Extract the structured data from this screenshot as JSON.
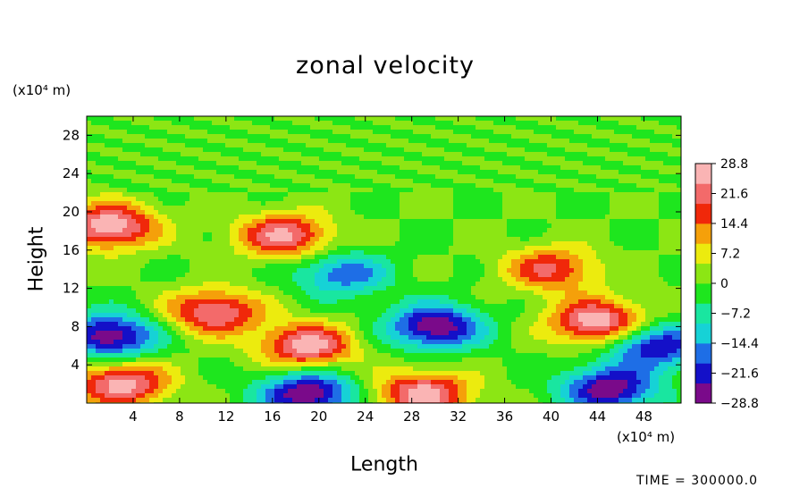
{
  "chart_data": {
    "type": "heatmap",
    "title": "zonal velocity",
    "xlabel": "Length",
    "ylabel": "Height",
    "x_unit": "(x10⁴ m)",
    "y_unit": "(x10⁴ m)",
    "xlim": [
      0,
      51.2
    ],
    "ylim": [
      0,
      30
    ],
    "x_ticks": [
      4,
      8,
      12,
      16,
      20,
      24,
      28,
      32,
      36,
      40,
      44,
      48
    ],
    "y_ticks": [
      4,
      8,
      12,
      16,
      20,
      24,
      28
    ],
    "colorbar": {
      "ticks": [
        28.8,
        21.6,
        14.4,
        7.2,
        0,
        -7.2,
        -14.4,
        -21.6,
        -28.8
      ],
      "tick_labels": [
        "28.8",
        "21.6",
        "14.4",
        "7.2",
        "0",
        "−7.2",
        "−14.4",
        "−21.6",
        "−28.8"
      ],
      "range": [
        -28.8,
        28.8
      ],
      "colors": [
        "#7a0a8a",
        "#1410c8",
        "#1e6ee6",
        "#16d2d6",
        "#19e6a0",
        "#1ee61e",
        "#8ce614",
        "#eceb0e",
        "#f5a00a",
        "#f0280a",
        "#f36a6a",
        "#fab4b4"
      ]
    },
    "features": [
      {
        "x": 2,
        "y": 18.5,
        "value": 29,
        "kind": "max"
      },
      {
        "x": 11,
        "y": 9.5,
        "value": 25,
        "kind": "max"
      },
      {
        "x": 19,
        "y": 6,
        "value": 27,
        "kind": "max"
      },
      {
        "x": 17,
        "y": 17.5,
        "value": 25,
        "kind": "max"
      },
      {
        "x": 44,
        "y": 8.5,
        "value": 29,
        "kind": "max"
      },
      {
        "x": 29,
        "y": 1,
        "value": 27,
        "kind": "max"
      },
      {
        "x": 3,
        "y": 2,
        "value": 27,
        "kind": "max"
      },
      {
        "x": 40,
        "y": 14,
        "value": 20,
        "kind": "max"
      },
      {
        "x": 30,
        "y": 8,
        "value": -29,
        "kind": "min"
      },
      {
        "x": 2,
        "y": 7,
        "value": -29,
        "kind": "min"
      },
      {
        "x": 19,
        "y": 1,
        "value": -29,
        "kind": "min"
      },
      {
        "x": 45,
        "y": 1.5,
        "value": -28,
        "kind": "min"
      },
      {
        "x": 22,
        "y": 13.5,
        "value": -18,
        "kind": "min"
      },
      {
        "x": 49,
        "y": 6,
        "value": -25,
        "kind": "min"
      }
    ]
  },
  "labels": {
    "title": "zonal velocity",
    "y_unit": "(x10⁴ m)",
    "x_unit": "(x10⁴ m)",
    "ylabel": "Height",
    "xlabel": "Length",
    "time_label": "TIME  =  300000.0"
  }
}
